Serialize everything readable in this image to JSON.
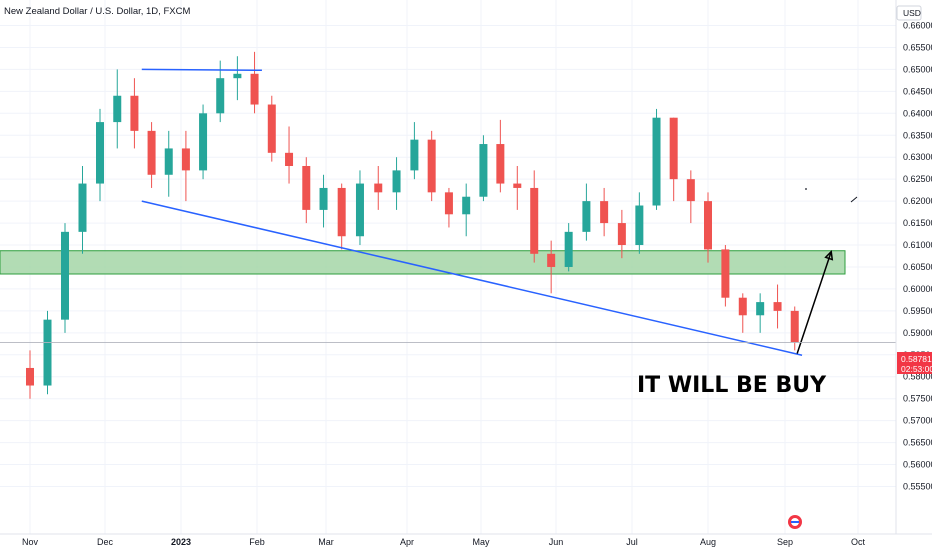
{
  "chart_data": {
    "type": "candlestick",
    "title": "New Zealand Dollar / U.S. Dollar, 1D, FXCM",
    "currency": "USD",
    "ylim": [
      0.551,
      0.664
    ],
    "y_ticks": [
      "0.66000",
      "0.65500",
      "0.65000",
      "0.64500",
      "0.64000",
      "0.63500",
      "0.63000",
      "0.62500",
      "0.62000",
      "0.61500",
      "0.61000",
      "0.60500",
      "0.60000",
      "0.59500",
      "0.59000",
      "0.58500",
      "0.58000",
      "0.57500",
      "0.57000",
      "0.56500",
      "0.56000",
      "0.55500"
    ],
    "x_ticks": [
      "Nov",
      "Dec",
      "2023",
      "Feb",
      "Mar",
      "Apr",
      "May",
      "Jun",
      "Jul",
      "Aug",
      "Sep",
      "Oct"
    ],
    "last_price": "0.58781",
    "countdown": "02:53:00",
    "annotation": "IT WILL BE BUY",
    "colors": {
      "up": "#26a69a",
      "down": "#ef5350",
      "zone_fill": "#a5d6a7",
      "zone_stroke": "#2e9e3e",
      "trendline": "#2962ff",
      "arrow": "#000000",
      "grid": "#f0f3fa"
    },
    "demand_zone": {
      "from": 0.6034,
      "to": 0.6087
    },
    "trendline_upper": {
      "from": {
        "x": "Dec 16 2022",
        "y": 0.65
      },
      "to": {
        "x": "Feb 3 2023",
        "y": 0.6498
      }
    },
    "trendline_lower": {
      "from": {
        "x": "Dec 16 2022",
        "y": 0.62
      },
      "to": {
        "x": "Sep 8 2023",
        "y": 0.5849
      }
    },
    "projection": [
      {
        "x": "Sep 6 2023",
        "y": 0.5853
      },
      {
        "x": "Sep 20 2023",
        "y": 0.6085
      }
    ],
    "series": [
      {
        "date": "Nov 1 2022",
        "ohlc": [
          0.582,
          0.586,
          0.575,
          0.578
        ]
      },
      {
        "date": "Nov 8 2022",
        "ohlc": [
          0.578,
          0.595,
          0.576,
          0.593
        ]
      },
      {
        "date": "Nov 15 2022",
        "ohlc": [
          0.593,
          0.615,
          0.59,
          0.613
        ]
      },
      {
        "date": "Nov 22 2022",
        "ohlc": [
          0.613,
          0.628,
          0.608,
          0.624
        ]
      },
      {
        "date": "Nov 29 2022",
        "ohlc": [
          0.624,
          0.641,
          0.62,
          0.638
        ]
      },
      {
        "date": "Dec 6 2022",
        "ohlc": [
          0.638,
          0.65,
          0.632,
          0.644
        ]
      },
      {
        "date": "Dec 13 2022",
        "ohlc": [
          0.644,
          0.648,
          0.632,
          0.636
        ]
      },
      {
        "date": "Dec 20 2022",
        "ohlc": [
          0.636,
          0.638,
          0.623,
          0.626
        ]
      },
      {
        "date": "Dec 27 2022",
        "ohlc": [
          0.626,
          0.636,
          0.621,
          0.632
        ]
      },
      {
        "date": "Jan 3 2023",
        "ohlc": [
          0.632,
          0.636,
          0.62,
          0.627
        ]
      },
      {
        "date": "Jan 10 2023",
        "ohlc": [
          0.627,
          0.642,
          0.625,
          0.64
        ]
      },
      {
        "date": "Jan 17 2023",
        "ohlc": [
          0.64,
          0.652,
          0.638,
          0.648
        ]
      },
      {
        "date": "Jan 24 2023",
        "ohlc": [
          0.648,
          0.653,
          0.643,
          0.649
        ]
      },
      {
        "date": "Jan 31 2023",
        "ohlc": [
          0.649,
          0.654,
          0.64,
          0.642
        ]
      },
      {
        "date": "Feb 7 2023",
        "ohlc": [
          0.642,
          0.644,
          0.629,
          0.631
        ]
      },
      {
        "date": "Feb 14 2023",
        "ohlc": [
          0.631,
          0.637,
          0.624,
          0.628
        ]
      },
      {
        "date": "Feb 21 2023",
        "ohlc": [
          0.628,
          0.63,
          0.615,
          0.618
        ]
      },
      {
        "date": "Feb 28 2023",
        "ohlc": [
          0.618,
          0.626,
          0.614,
          0.623
        ]
      },
      {
        "date": "Mar 7 2023",
        "ohlc": [
          0.623,
          0.624,
          0.609,
          0.612
        ]
      },
      {
        "date": "Mar 14 2023",
        "ohlc": [
          0.612,
          0.627,
          0.61,
          0.624
        ]
      },
      {
        "date": "Mar 21 2023",
        "ohlc": [
          0.624,
          0.628,
          0.618,
          0.622
        ]
      },
      {
        "date": "Mar 28 2023",
        "ohlc": [
          0.622,
          0.63,
          0.618,
          0.627
        ]
      },
      {
        "date": "Apr 4 2023",
        "ohlc": [
          0.627,
          0.638,
          0.625,
          0.634
        ]
      },
      {
        "date": "Apr 11 2023",
        "ohlc": [
          0.634,
          0.636,
          0.62,
          0.622
        ]
      },
      {
        "date": "Apr 18 2023",
        "ohlc": [
          0.622,
          0.623,
          0.614,
          0.617
        ]
      },
      {
        "date": "Apr 25 2023",
        "ohlc": [
          0.617,
          0.624,
          0.612,
          0.621
        ]
      },
      {
        "date": "May 2 2023",
        "ohlc": [
          0.621,
          0.635,
          0.62,
          0.633
        ]
      },
      {
        "date": "May 9 2023",
        "ohlc": [
          0.633,
          0.6385,
          0.622,
          0.624
        ]
      },
      {
        "date": "May 16 2023",
        "ohlc": [
          0.624,
          0.628,
          0.618,
          0.623
        ]
      },
      {
        "date": "May 23 2023",
        "ohlc": [
          0.623,
          0.627,
          0.606,
          0.608
        ]
      },
      {
        "date": "May 30 2023",
        "ohlc": [
          0.608,
          0.611,
          0.599,
          0.605
        ]
      },
      {
        "date": "Jun 6 2023",
        "ohlc": [
          0.605,
          0.615,
          0.604,
          0.613
        ]
      },
      {
        "date": "Jun 13 2023",
        "ohlc": [
          0.613,
          0.624,
          0.611,
          0.62
        ]
      },
      {
        "date": "Jun 20 2023",
        "ohlc": [
          0.62,
          0.623,
          0.612,
          0.615
        ]
      },
      {
        "date": "Jun 27 2023",
        "ohlc": [
          0.615,
          0.618,
          0.607,
          0.61
        ]
      },
      {
        "date": "Jul 4 2023",
        "ohlc": [
          0.61,
          0.622,
          0.608,
          0.619
        ]
      },
      {
        "date": "Jul 11 2023",
        "ohlc": [
          0.619,
          0.641,
          0.618,
          0.639
        ]
      },
      {
        "date": "Jul 18 2023",
        "ohlc": [
          0.639,
          0.639,
          0.62,
          0.625
        ]
      },
      {
        "date": "Jul 25 2023",
        "ohlc": [
          0.625,
          0.627,
          0.615,
          0.62
        ]
      },
      {
        "date": "Aug 1 2023",
        "ohlc": [
          0.62,
          0.622,
          0.606,
          0.609
        ]
      },
      {
        "date": "Aug 8 2023",
        "ohlc": [
          0.609,
          0.61,
          0.596,
          0.598
        ]
      },
      {
        "date": "Aug 15 2023",
        "ohlc": [
          0.598,
          0.599,
          0.59,
          0.594
        ]
      },
      {
        "date": "Aug 22 2023",
        "ohlc": [
          0.594,
          0.599,
          0.59,
          0.597
        ]
      },
      {
        "date": "Aug 29 2023",
        "ohlc": [
          0.597,
          0.601,
          0.591,
          0.595
        ]
      },
      {
        "date": "Sep 5 2023",
        "ohlc": [
          0.595,
          0.596,
          0.586,
          0.5878
        ]
      }
    ]
  }
}
